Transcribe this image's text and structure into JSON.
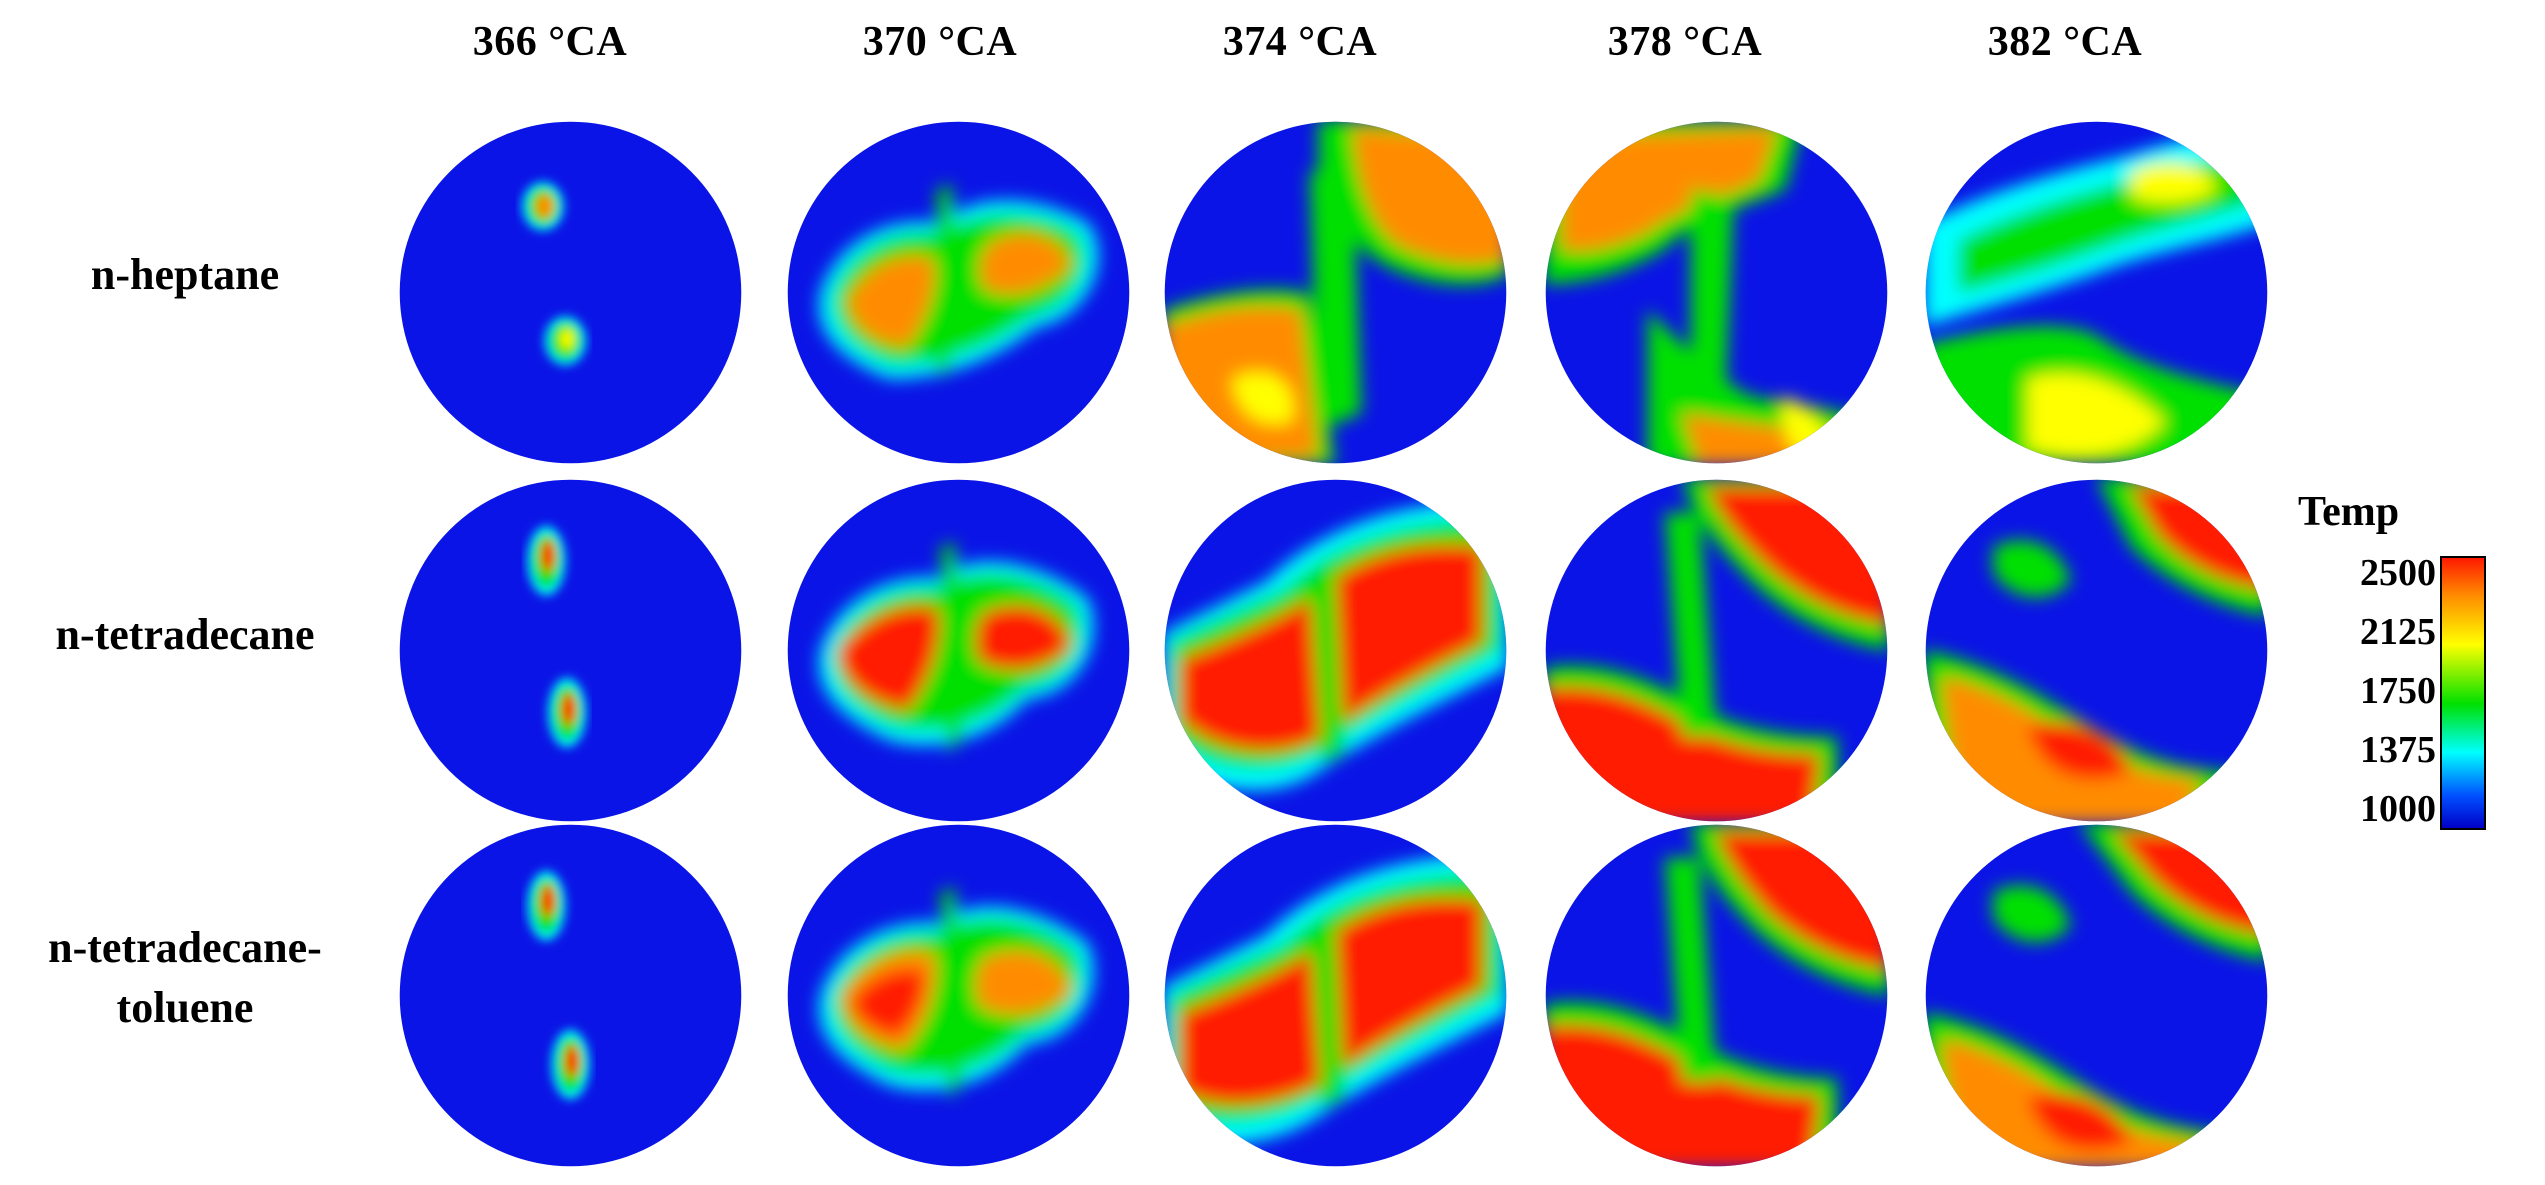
{
  "column_headers": [
    "366 °CA",
    "370 °CA",
    "374 °CA",
    "378 °CA",
    "382 °CA"
  ],
  "row_labels": [
    {
      "line1": "n-heptane",
      "line2": ""
    },
    {
      "line1": "n-tetradecane",
      "line2": ""
    },
    {
      "line1": "n-tetradecane-",
      "line2": "toluene"
    }
  ],
  "legend": {
    "title": "Temp",
    "ticks": [
      "2500",
      "2125",
      "1750",
      "1375",
      "1000"
    ],
    "colors": [
      "#ff1a00",
      "#ff8c00",
      "#ffff00",
      "#00e000",
      "#00ffff",
      "#0050ff",
      "#0000c8"
    ]
  },
  "background_color": "#0a14e6"
}
